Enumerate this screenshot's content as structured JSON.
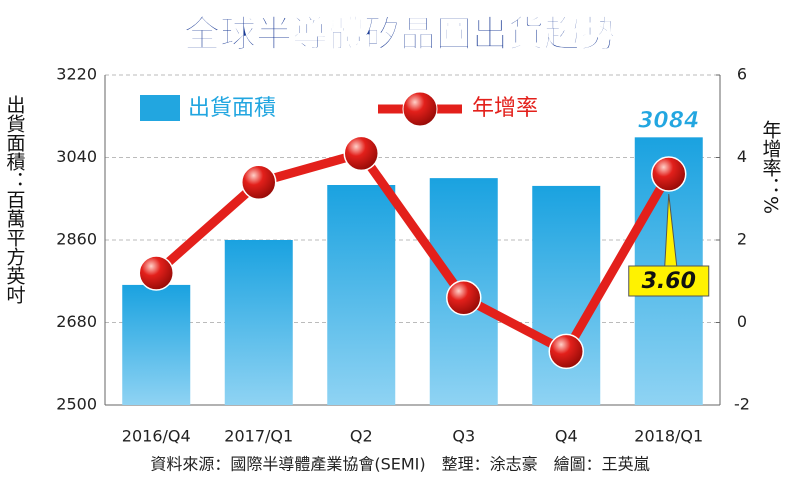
{
  "chart_data": {
    "type": "bar-line",
    "title": "全球半導體矽晶圓出貨趨勢",
    "y_label": "出貨面積：百萬平方英吋",
    "y2_label": "年增率：%",
    "source": "資料來源：國際半導體產業協會(SEMI)　整理：涂志豪　繪圖：王英嵐",
    "categories": [
      "2016/Q4",
      "2017/Q1",
      "Q2",
      "Q3",
      "Q4",
      "2018/Q1"
    ],
    "series": [
      {
        "name": "出貨面積",
        "type": "bar",
        "color": "#22a6e0",
        "values": [
          2762,
          2860,
          2980,
          2995,
          2978,
          3084
        ]
      },
      {
        "name": "年增率",
        "type": "line",
        "axis": "y2",
        "color": "#e3201b",
        "values": [
          1.2,
          3.4,
          4.1,
          0.6,
          -0.7,
          3.6
        ],
        "value_labels": [
          null,
          null,
          null,
          null,
          null,
          "3.60"
        ]
      }
    ],
    "ylim": [
      2500,
      3220
    ],
    "yticks": [
      2500,
      2680,
      2860,
      3040,
      3220
    ],
    "y2lim": [
      -2,
      6
    ],
    "y2ticks": [
      -2,
      0,
      2,
      4,
      6
    ],
    "grid": true
  }
}
